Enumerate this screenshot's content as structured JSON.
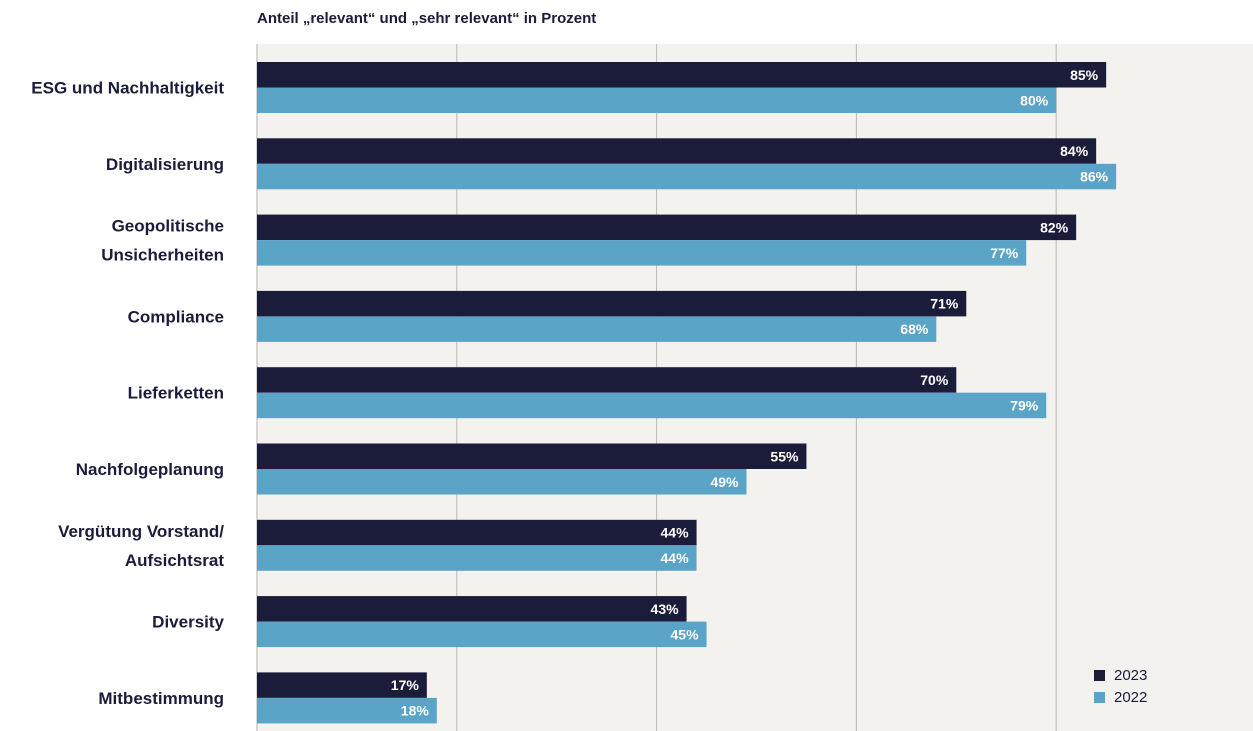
{
  "chart_data": {
    "type": "bar",
    "orientation": "horizontal",
    "title": "Anteil „relevant“ und „sehr relevant“ in Prozent",
    "categories": [
      "ESG und Nachhaltigkeit",
      "Digitalisierung",
      "Geopolitische Unsicherheiten",
      "Compliance",
      "Lieferketten",
      "Nachfolgeplanung",
      "Vergütung Vorstand/ Aufsichtsrat",
      "Diversity",
      "Mitbestimmung"
    ],
    "category_lines": [
      [
        "ESG und Nachhaltigkeit"
      ],
      [
        "Digitalisierung"
      ],
      [
        "Geopolitische",
        "Unsicherheiten"
      ],
      [
        "Compliance"
      ],
      [
        "Lieferketten"
      ],
      [
        "Nachfolgeplanung"
      ],
      [
        "Vergütung Vorstand/",
        "Aufsichtsrat"
      ],
      [
        "Diversity"
      ],
      [
        "Mitbestimmung"
      ]
    ],
    "series": [
      {
        "name": "2023",
        "color": "#1b1b3a",
        "values": [
          85,
          84,
          82,
          71,
          70,
          55,
          44,
          43,
          17
        ]
      },
      {
        "name": "2022",
        "color": "#5aa4c8",
        "values": [
          80,
          86,
          77,
          68,
          79,
          49,
          44,
          45,
          18
        ]
      }
    ],
    "value_suffix": "%",
    "xlim": [
      0,
      100
    ],
    "grid": true,
    "gridline_values": [
      0,
      20,
      40,
      60,
      80
    ],
    "legend_position": "bottom-right"
  }
}
